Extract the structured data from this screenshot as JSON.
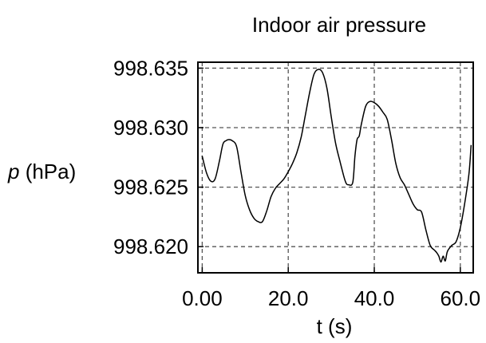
{
  "chart_data": {
    "type": "line",
    "title": "Indoor air pressure",
    "xlabel": "t (s)",
    "ylabel_symbol": "p",
    "ylabel_unit": " (hPa)",
    "xlim": [
      -1,
      63
    ],
    "ylim": [
      998.6178,
      998.6355
    ],
    "x_ticks": [
      0,
      20,
      40,
      60
    ],
    "x_tick_labels": [
      "0.00",
      "20.0",
      "40.0",
      "60.0"
    ],
    "y_ticks": [
      998.62,
      998.625,
      998.63,
      998.635
    ],
    "y_tick_labels": [
      "998.620",
      "998.625",
      "998.630",
      "998.635"
    ],
    "grid": true,
    "grid_style": "dashed",
    "line_color": "#000000",
    "series": [
      {
        "x": [
          0.0,
          1.0,
          2.0,
          3.0,
          4.0,
          4.8,
          5.5,
          6.2,
          7.0,
          8.0,
          9.0,
          10.0,
          11.0,
          12.0,
          13.0,
          14.0,
          15.0,
          16.0,
          17.0,
          18.0,
          19.0,
          20.0,
          21.0,
          22.0,
          23.0,
          24.0,
          25.0,
          26.0,
          27.0,
          28.0,
          29.0,
          30.0,
          31.0,
          32.0,
          33.0,
          33.5,
          34.0,
          35.0,
          35.5,
          36.0,
          36.5,
          37.0,
          38.0,
          39.0,
          40.0,
          41.0,
          42.0,
          43.0,
          44.0,
          45.0,
          46.0,
          47.0,
          48.0,
          49.0,
          50.0,
          51.0,
          52.0,
          53.0,
          54.0,
          54.5,
          55.0,
          55.5,
          56.0,
          56.5,
          57.0,
          58.0,
          59.0,
          60.0,
          61.0,
          62.0,
          62.5
        ],
        "y": [
          998.6276,
          998.6262,
          998.6255,
          998.6257,
          998.6272,
          998.6286,
          998.6289,
          998.629,
          998.6289,
          998.6284,
          998.6263,
          998.6243,
          998.6231,
          998.6224,
          998.6221,
          998.6221,
          998.623,
          998.6242,
          998.6249,
          998.6253,
          998.6257,
          998.6263,
          998.627,
          998.6279,
          998.6292,
          998.6311,
          998.633,
          998.6345,
          998.6349,
          998.6346,
          998.6333,
          998.6309,
          998.6287,
          998.6272,
          998.6258,
          998.6253,
          998.6252,
          998.6254,
          998.6276,
          998.629,
          998.6293,
          998.6303,
          998.6318,
          998.6322,
          998.6321,
          998.6318,
          998.6313,
          998.6307,
          998.629,
          998.627,
          998.6258,
          998.6252,
          998.6244,
          998.6236,
          998.6231,
          998.6229,
          998.6214,
          998.6201,
          998.6197,
          998.6195,
          998.6192,
          998.6187,
          998.6192,
          998.6188,
          998.6196,
          998.6201,
          998.6204,
          998.6216,
          998.6236,
          998.6261,
          998.6285
        ]
      }
    ]
  }
}
